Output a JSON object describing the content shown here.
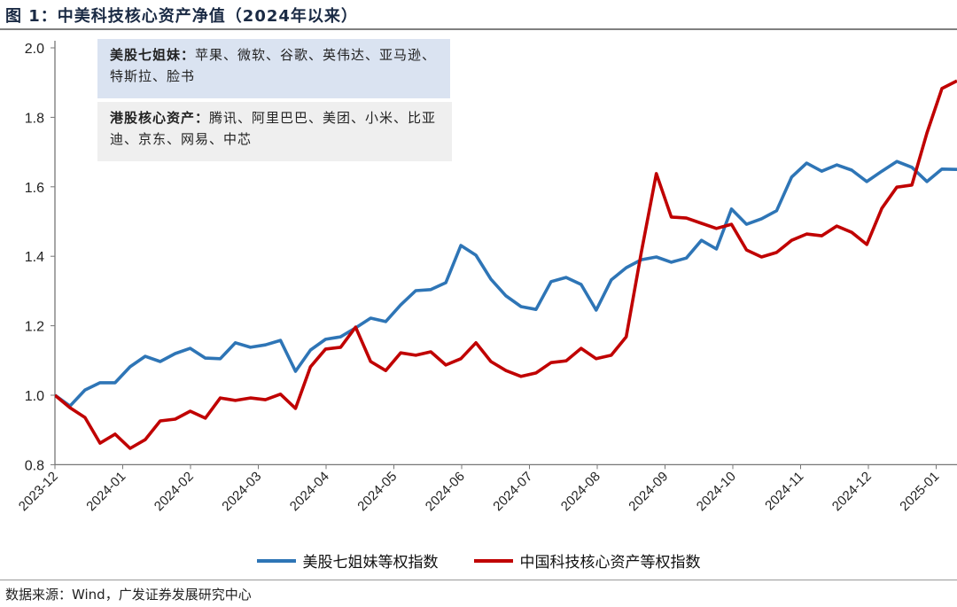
{
  "header": {
    "title": "图 1：中美科技核心资产净值（2024年以来）"
  },
  "annotations": {
    "us_label": "美股七姐妹：",
    "us_text": "苹果、微软、谷歌、英伟达、亚马逊、特斯拉、脸书",
    "hk_label": "港股核心资产：",
    "hk_text": "腾讯、阿里巴巴、美团、小米、比亚迪、京东、网易、中芯"
  },
  "footer": {
    "source": "数据来源：Wind，广发证券发展研究中心"
  },
  "chart_data": {
    "type": "line",
    "title": "图 1：中美科技核心资产净值（2024年以来）",
    "xlabel": "",
    "ylabel": "",
    "ylim": [
      0.8,
      2.0
    ],
    "yticks": [
      "0.8",
      "1.0",
      "1.2",
      "1.4",
      "1.6",
      "1.8",
      "2.0"
    ],
    "xticks": [
      "2023-12",
      "2024-01",
      "2024-02",
      "2024-03",
      "2024-04",
      "2024-05",
      "2024-06",
      "2024-07",
      "2024-08",
      "2024-09",
      "2024-10",
      "2024-11",
      "2024-12",
      "2025-01"
    ],
    "grid": false,
    "legend_position": "bottom",
    "colors": {
      "us": "#2e75b6",
      "cn": "#c00000"
    },
    "series": [
      {
        "name": "美股七姐妹等权指数",
        "color": "#2e75b6",
        "values": [
          1.0,
          0.969,
          1.015,
          1.036,
          1.036,
          1.082,
          1.112,
          1.097,
          1.12,
          1.135,
          1.107,
          1.105,
          1.151,
          1.138,
          1.145,
          1.158,
          1.069,
          1.13,
          1.161,
          1.168,
          1.194,
          1.222,
          1.212,
          1.26,
          1.301,
          1.304,
          1.324,
          1.431,
          1.403,
          1.334,
          1.286,
          1.255,
          1.247,
          1.327,
          1.339,
          1.319,
          1.245,
          1.332,
          1.367,
          1.39,
          1.398,
          1.383,
          1.395,
          1.446,
          1.421,
          1.536,
          1.492,
          1.508,
          1.531,
          1.628,
          1.668,
          1.645,
          1.663,
          1.648,
          1.615,
          1.645,
          1.673,
          1.656,
          1.615,
          1.651,
          1.65
        ]
      },
      {
        "name": "中国科技核心资产等权指数",
        "color": "#c00000",
        "values": [
          1.0,
          0.964,
          0.936,
          0.862,
          0.888,
          0.847,
          0.872,
          0.926,
          0.931,
          0.954,
          0.934,
          0.992,
          0.985,
          0.992,
          0.987,
          1.003,
          0.962,
          1.082,
          1.133,
          1.138,
          1.196,
          1.097,
          1.071,
          1.122,
          1.115,
          1.125,
          1.087,
          1.105,
          1.151,
          1.097,
          1.071,
          1.054,
          1.064,
          1.094,
          1.099,
          1.135,
          1.105,
          1.115,
          1.168,
          1.411,
          1.638,
          1.513,
          1.51,
          1.495,
          1.48,
          1.492,
          1.418,
          1.398,
          1.411,
          1.446,
          1.464,
          1.459,
          1.487,
          1.469,
          1.434,
          1.538,
          1.599,
          1.605,
          1.755,
          1.883,
          1.905
        ]
      }
    ]
  }
}
